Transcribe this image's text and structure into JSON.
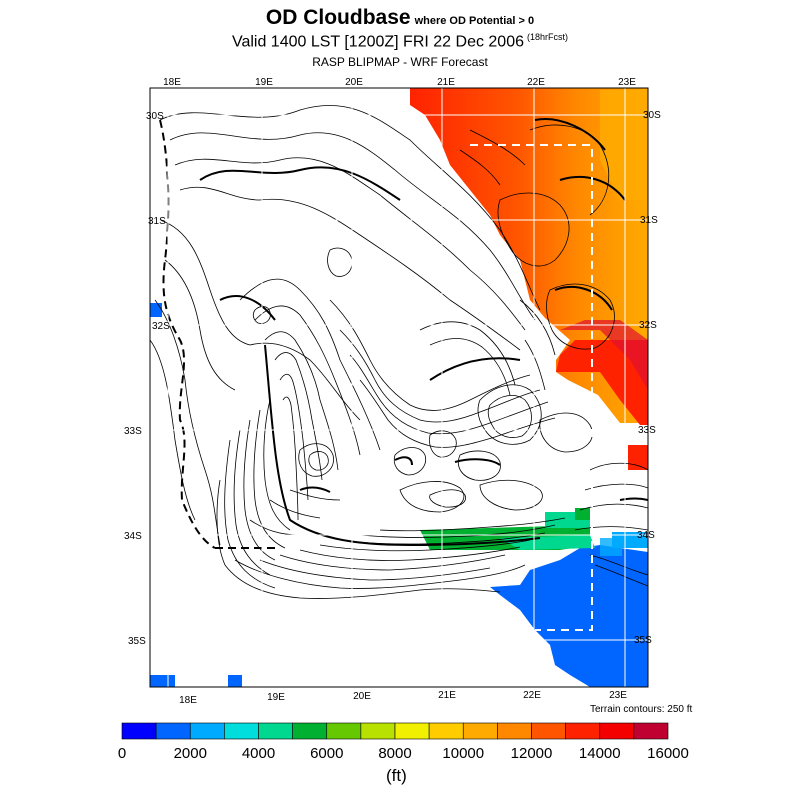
{
  "title": {
    "main": "OD Cloudbase",
    "suffix": "where OD Potential > 0",
    "valid": "Valid 1400 LST [1200Z] FRI 22 Dec 2006",
    "forecast_hours": "(18hrFcst)",
    "model": "RASP BLIPMAP - WRF Forecast"
  },
  "map": {
    "lon_labels_top": [
      "18E",
      "19E",
      "20E",
      "21E",
      "22E",
      "23E"
    ],
    "lon_labels_bottom": [
      "18E",
      "19E",
      "20E",
      "21E",
      "22E",
      "23E"
    ],
    "lat_labels_left": [
      "30S",
      "31S",
      "32S",
      "33S",
      "34S",
      "35S"
    ],
    "lat_labels_right": [
      "30S",
      "31S",
      "32S",
      "33S",
      "34S",
      "35S"
    ],
    "terrain_note": "Terrain contours: 250 ft"
  },
  "colorbar": {
    "tick_labels": [
      "0",
      "2000",
      "4000",
      "6000",
      "8000",
      "10000",
      "12000",
      "14000",
      "16000"
    ],
    "colors": [
      "#0000ff",
      "#0066ff",
      "#00aaff",
      "#00dddd",
      "#00d890",
      "#00b030",
      "#66c800",
      "#b8e000",
      "#f0f000",
      "#ffcc00",
      "#ffaa00",
      "#ff8800",
      "#ff5500",
      "#ff2200",
      "#f40000",
      "#c00030"
    ],
    "unit": "(ft)"
  }
}
